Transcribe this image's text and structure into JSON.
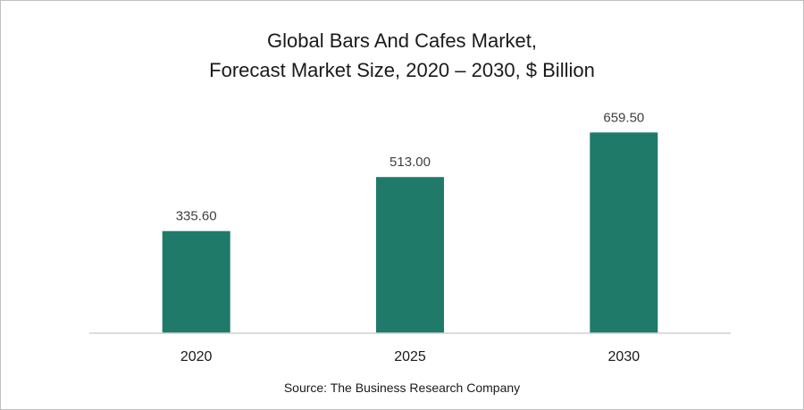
{
  "title_line1": "Global Bars And Cafes Market,",
  "title_line2": "Forecast Market Size, 2020 – 2030, $ Billion",
  "source": "Source: The Business Research Company",
  "colors": {
    "bar": "#1f7a6a",
    "axis": "#d0d0d0",
    "text": "#1a1a1a",
    "label": "#404040"
  },
  "chart_data": {
    "type": "bar",
    "title": "Global Bars And Cafes Market, Forecast Market Size, 2020 – 2030, $ Billion",
    "categories": [
      "2020",
      "2025",
      "2030"
    ],
    "values": [
      335.6,
      513.0,
      659.5
    ],
    "value_labels": [
      "335.60",
      "513.00",
      "659.50"
    ],
    "xlabel": "",
    "ylabel": "",
    "ylim": [
      0,
      725
    ],
    "grid": false,
    "legend": "none"
  }
}
